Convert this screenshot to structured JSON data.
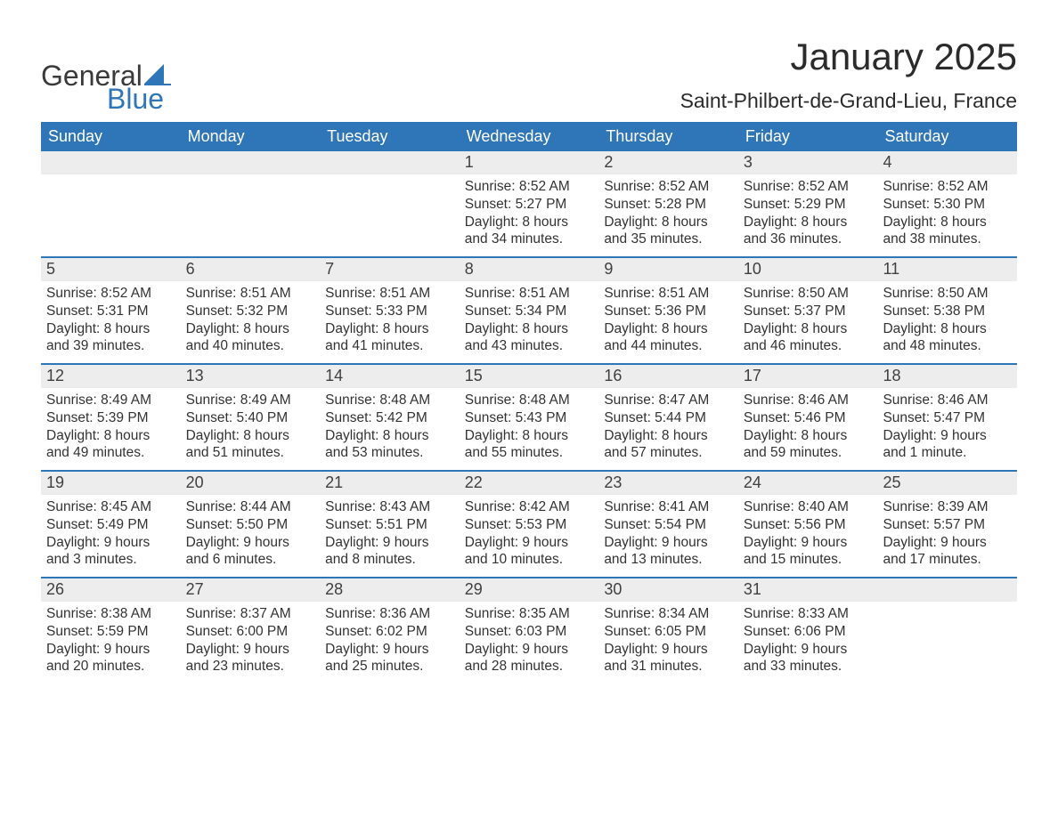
{
  "logo": {
    "general": "General",
    "blue": "Blue",
    "sail_color": "#2f76b8"
  },
  "title": "January 2025",
  "location": "Saint-Philbert-de-Grand-Lieu, France",
  "colors": {
    "header_bg": "#2f76b8",
    "header_text": "#ffffff",
    "daynum_bg": "#ededed",
    "week_border": "#2f76b8",
    "body_text": "#333333"
  },
  "days_of_week": [
    "Sunday",
    "Monday",
    "Tuesday",
    "Wednesday",
    "Thursday",
    "Friday",
    "Saturday"
  ],
  "weeks": [
    [
      null,
      null,
      null,
      {
        "n": "1",
        "sr": "Sunrise: 8:52 AM",
        "ss": "Sunset: 5:27 PM",
        "d1": "Daylight: 8 hours",
        "d2": "and 34 minutes."
      },
      {
        "n": "2",
        "sr": "Sunrise: 8:52 AM",
        "ss": "Sunset: 5:28 PM",
        "d1": "Daylight: 8 hours",
        "d2": "and 35 minutes."
      },
      {
        "n": "3",
        "sr": "Sunrise: 8:52 AM",
        "ss": "Sunset: 5:29 PM",
        "d1": "Daylight: 8 hours",
        "d2": "and 36 minutes."
      },
      {
        "n": "4",
        "sr": "Sunrise: 8:52 AM",
        "ss": "Sunset: 5:30 PM",
        "d1": "Daylight: 8 hours",
        "d2": "and 38 minutes."
      }
    ],
    [
      {
        "n": "5",
        "sr": "Sunrise: 8:52 AM",
        "ss": "Sunset: 5:31 PM",
        "d1": "Daylight: 8 hours",
        "d2": "and 39 minutes."
      },
      {
        "n": "6",
        "sr": "Sunrise: 8:51 AM",
        "ss": "Sunset: 5:32 PM",
        "d1": "Daylight: 8 hours",
        "d2": "and 40 minutes."
      },
      {
        "n": "7",
        "sr": "Sunrise: 8:51 AM",
        "ss": "Sunset: 5:33 PM",
        "d1": "Daylight: 8 hours",
        "d2": "and 41 minutes."
      },
      {
        "n": "8",
        "sr": "Sunrise: 8:51 AM",
        "ss": "Sunset: 5:34 PM",
        "d1": "Daylight: 8 hours",
        "d2": "and 43 minutes."
      },
      {
        "n": "9",
        "sr": "Sunrise: 8:51 AM",
        "ss": "Sunset: 5:36 PM",
        "d1": "Daylight: 8 hours",
        "d2": "and 44 minutes."
      },
      {
        "n": "10",
        "sr": "Sunrise: 8:50 AM",
        "ss": "Sunset: 5:37 PM",
        "d1": "Daylight: 8 hours",
        "d2": "and 46 minutes."
      },
      {
        "n": "11",
        "sr": "Sunrise: 8:50 AM",
        "ss": "Sunset: 5:38 PM",
        "d1": "Daylight: 8 hours",
        "d2": "and 48 minutes."
      }
    ],
    [
      {
        "n": "12",
        "sr": "Sunrise: 8:49 AM",
        "ss": "Sunset: 5:39 PM",
        "d1": "Daylight: 8 hours",
        "d2": "and 49 minutes."
      },
      {
        "n": "13",
        "sr": "Sunrise: 8:49 AM",
        "ss": "Sunset: 5:40 PM",
        "d1": "Daylight: 8 hours",
        "d2": "and 51 minutes."
      },
      {
        "n": "14",
        "sr": "Sunrise: 8:48 AM",
        "ss": "Sunset: 5:42 PM",
        "d1": "Daylight: 8 hours",
        "d2": "and 53 minutes."
      },
      {
        "n": "15",
        "sr": "Sunrise: 8:48 AM",
        "ss": "Sunset: 5:43 PM",
        "d1": "Daylight: 8 hours",
        "d2": "and 55 minutes."
      },
      {
        "n": "16",
        "sr": "Sunrise: 8:47 AM",
        "ss": "Sunset: 5:44 PM",
        "d1": "Daylight: 8 hours",
        "d2": "and 57 minutes."
      },
      {
        "n": "17",
        "sr": "Sunrise: 8:46 AM",
        "ss": "Sunset: 5:46 PM",
        "d1": "Daylight: 8 hours",
        "d2": "and 59 minutes."
      },
      {
        "n": "18",
        "sr": "Sunrise: 8:46 AM",
        "ss": "Sunset: 5:47 PM",
        "d1": "Daylight: 9 hours",
        "d2": "and 1 minute."
      }
    ],
    [
      {
        "n": "19",
        "sr": "Sunrise: 8:45 AM",
        "ss": "Sunset: 5:49 PM",
        "d1": "Daylight: 9 hours",
        "d2": "and 3 minutes."
      },
      {
        "n": "20",
        "sr": "Sunrise: 8:44 AM",
        "ss": "Sunset: 5:50 PM",
        "d1": "Daylight: 9 hours",
        "d2": "and 6 minutes."
      },
      {
        "n": "21",
        "sr": "Sunrise: 8:43 AM",
        "ss": "Sunset: 5:51 PM",
        "d1": "Daylight: 9 hours",
        "d2": "and 8 minutes."
      },
      {
        "n": "22",
        "sr": "Sunrise: 8:42 AM",
        "ss": "Sunset: 5:53 PM",
        "d1": "Daylight: 9 hours",
        "d2": "and 10 minutes."
      },
      {
        "n": "23",
        "sr": "Sunrise: 8:41 AM",
        "ss": "Sunset: 5:54 PM",
        "d1": "Daylight: 9 hours",
        "d2": "and 13 minutes."
      },
      {
        "n": "24",
        "sr": "Sunrise: 8:40 AM",
        "ss": "Sunset: 5:56 PM",
        "d1": "Daylight: 9 hours",
        "d2": "and 15 minutes."
      },
      {
        "n": "25",
        "sr": "Sunrise: 8:39 AM",
        "ss": "Sunset: 5:57 PM",
        "d1": "Daylight: 9 hours",
        "d2": "and 17 minutes."
      }
    ],
    [
      {
        "n": "26",
        "sr": "Sunrise: 8:38 AM",
        "ss": "Sunset: 5:59 PM",
        "d1": "Daylight: 9 hours",
        "d2": "and 20 minutes."
      },
      {
        "n": "27",
        "sr": "Sunrise: 8:37 AM",
        "ss": "Sunset: 6:00 PM",
        "d1": "Daylight: 9 hours",
        "d2": "and 23 minutes."
      },
      {
        "n": "28",
        "sr": "Sunrise: 8:36 AM",
        "ss": "Sunset: 6:02 PM",
        "d1": "Daylight: 9 hours",
        "d2": "and 25 minutes."
      },
      {
        "n": "29",
        "sr": "Sunrise: 8:35 AM",
        "ss": "Sunset: 6:03 PM",
        "d1": "Daylight: 9 hours",
        "d2": "and 28 minutes."
      },
      {
        "n": "30",
        "sr": "Sunrise: 8:34 AM",
        "ss": "Sunset: 6:05 PM",
        "d1": "Daylight: 9 hours",
        "d2": "and 31 minutes."
      },
      {
        "n": "31",
        "sr": "Sunrise: 8:33 AM",
        "ss": "Sunset: 6:06 PM",
        "d1": "Daylight: 9 hours",
        "d2": "and 33 minutes."
      },
      null
    ]
  ]
}
